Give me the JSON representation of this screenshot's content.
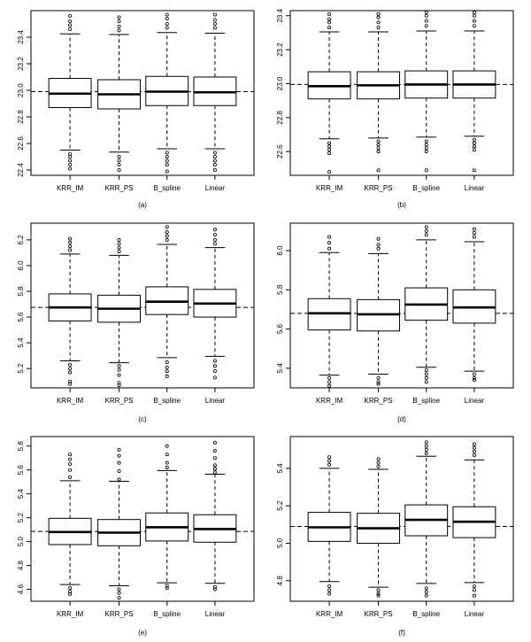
{
  "chart_data": [
    {
      "type": "box",
      "panel_label": "(a)",
      "categories": [
        "KRR_IM",
        "KRR_PS",
        "B_spline",
        "Linear"
      ],
      "ylim": [
        22.36,
        23.6
      ],
      "yticks": [
        "22.4",
        "22.6",
        "22.8",
        "23.0",
        "23.2",
        "23.4"
      ],
      "reference_line": 22.99,
      "boxes": [
        {
          "q1": 22.87,
          "median": 22.975,
          "q3": 23.09,
          "whisker_low": 22.55,
          "whisker_high": 23.425,
          "outliers": [
            22.52,
            22.5,
            22.47,
            22.44,
            22.41,
            23.46,
            23.49,
            23.52,
            23.56
          ]
        },
        {
          "q1": 22.86,
          "median": 22.97,
          "q3": 23.08,
          "whisker_low": 22.535,
          "whisker_high": 23.42,
          "outliers": [
            22.5,
            22.47,
            22.44,
            22.4,
            23.45,
            23.48,
            23.52,
            23.55
          ]
        },
        {
          "q1": 22.885,
          "median": 22.99,
          "q3": 23.105,
          "whisker_low": 22.56,
          "whisker_high": 23.435,
          "outliers": [
            22.53,
            22.5,
            22.47,
            22.44,
            22.39,
            23.47,
            23.5,
            23.54,
            23.57
          ]
        },
        {
          "q1": 22.885,
          "median": 22.985,
          "q3": 23.1,
          "whisker_low": 22.56,
          "whisker_high": 23.43,
          "outliers": [
            22.53,
            22.5,
            22.47,
            22.44,
            22.4,
            23.47,
            23.5,
            23.53,
            23.57
          ]
        }
      ]
    },
    {
      "type": "box",
      "panel_label": "(b)",
      "categories": [
        "KRR_IM",
        "KRR_PS",
        "B_spline",
        "Linear"
      ],
      "ylim": [
        22.46,
        23.43
      ],
      "yticks": [
        "22.6",
        "22.8",
        "23.0",
        "23.2",
        "23.4"
      ],
      "reference_line": 22.995,
      "boxes": [
        {
          "q1": 22.91,
          "median": 22.985,
          "q3": 23.07,
          "whisker_low": 22.675,
          "whisker_high": 23.305,
          "outliers": [
            22.65,
            22.63,
            22.61,
            22.59,
            22.48,
            23.33,
            23.36,
            23.38,
            23.41
          ]
        },
        {
          "q1": 22.91,
          "median": 22.99,
          "q3": 23.07,
          "whisker_low": 22.68,
          "whisker_high": 23.305,
          "outliers": [
            22.66,
            22.64,
            22.62,
            22.6,
            22.49,
            23.33,
            23.36,
            23.39,
            23.41
          ]
        },
        {
          "q1": 22.915,
          "median": 22.995,
          "q3": 23.075,
          "whisker_low": 22.685,
          "whisker_high": 23.31,
          "outliers": [
            22.66,
            22.64,
            22.62,
            22.6,
            22.49,
            23.34,
            23.37,
            23.4,
            23.42
          ]
        },
        {
          "q1": 22.915,
          "median": 22.995,
          "q3": 23.075,
          "whisker_low": 22.69,
          "whisker_high": 23.31,
          "outliers": [
            22.67,
            22.65,
            22.63,
            22.61,
            22.49,
            23.34,
            23.37,
            23.4,
            23.42
          ]
        }
      ]
    },
    {
      "type": "box",
      "panel_label": "(c)",
      "categories": [
        "KRR_IM",
        "KRR_PS",
        "B_spline",
        "Linear"
      ],
      "ylim": [
        5.05,
        6.33
      ],
      "yticks": [
        "5.2",
        "5.4",
        "5.6",
        "5.8",
        "6.0",
        "6.2"
      ],
      "reference_line": 5.675,
      "boxes": [
        {
          "q1": 5.57,
          "median": 5.675,
          "q3": 5.78,
          "whisker_low": 5.26,
          "whisker_high": 6.09,
          "outliers": [
            5.23,
            5.2,
            5.17,
            5.1,
            5.08,
            6.12,
            6.15,
            6.18,
            6.21
          ]
        },
        {
          "q1": 5.56,
          "median": 5.665,
          "q3": 5.77,
          "whisker_low": 5.245,
          "whisker_high": 6.08,
          "outliers": [
            5.22,
            5.19,
            5.15,
            5.09,
            5.07,
            6.11,
            6.14,
            6.17,
            6.2
          ]
        },
        {
          "q1": 5.62,
          "median": 5.72,
          "q3": 5.835,
          "whisker_low": 5.285,
          "whisker_high": 6.165,
          "outliers": [
            5.25,
            5.21,
            5.18,
            5.14,
            6.2,
            6.23,
            6.26,
            6.3
          ]
        },
        {
          "q1": 5.6,
          "median": 5.705,
          "q3": 5.815,
          "whisker_low": 5.295,
          "whisker_high": 6.14,
          "outliers": [
            5.26,
            5.22,
            5.18,
            5.13,
            6.17,
            6.2,
            6.24,
            6.28
          ]
        }
      ]
    },
    {
      "type": "box",
      "panel_label": "(d)",
      "categories": [
        "KRR_IM",
        "KRR_PS",
        "B_spline",
        "Linear"
      ],
      "ylim": [
        5.3,
        6.14
      ],
      "yticks": [
        "5.4",
        "5.6",
        "5.8",
        "6.0"
      ],
      "reference_line": 5.68,
      "boxes": [
        {
          "q1": 5.595,
          "median": 5.68,
          "q3": 5.755,
          "whisker_low": 5.365,
          "whisker_high": 5.99,
          "outliers": [
            5.35,
            5.33,
            5.31,
            6.01,
            6.04,
            6.07
          ]
        },
        {
          "q1": 5.59,
          "median": 5.675,
          "q3": 5.75,
          "whisker_low": 5.37,
          "whisker_high": 5.985,
          "outliers": [
            5.35,
            5.33,
            5.32,
            6.01,
            6.03,
            6.06
          ]
        },
        {
          "q1": 5.645,
          "median": 5.725,
          "q3": 5.81,
          "whisker_low": 5.405,
          "whisker_high": 6.055,
          "outliers": [
            5.39,
            5.37,
            5.35,
            5.33,
            6.08,
            6.1,
            6.12
          ]
        },
        {
          "q1": 5.63,
          "median": 5.71,
          "q3": 5.8,
          "whisker_low": 5.385,
          "whisker_high": 6.045,
          "outliers": [
            5.37,
            5.35,
            5.34,
            6.07,
            6.09,
            6.11
          ]
        }
      ]
    },
    {
      "type": "box",
      "panel_label": "(e)",
      "categories": [
        "KRR_IM",
        "KRR_PS",
        "B_spline",
        "Linear"
      ],
      "ylim": [
        4.5,
        5.88
      ],
      "yticks": [
        "4.6",
        "4.8",
        "5.0",
        "5.2",
        "5.4",
        "5.6",
        "5.8"
      ],
      "reference_line": 5.085,
      "boxes": [
        {
          "q1": 4.975,
          "median": 5.08,
          "q3": 5.195,
          "whisker_low": 4.64,
          "whisker_high": 5.51,
          "outliers": [
            4.61,
            4.58,
            4.56,
            5.54,
            5.6,
            5.65,
            5.69,
            5.73
          ]
        },
        {
          "q1": 4.965,
          "median": 5.075,
          "q3": 5.185,
          "whisker_low": 4.63,
          "whisker_high": 5.505,
          "outliers": [
            4.6,
            4.57,
            4.53,
            5.52,
            5.59,
            5.66,
            5.72,
            5.77
          ]
        },
        {
          "q1": 5.005,
          "median": 5.12,
          "q3": 5.24,
          "whisker_low": 4.655,
          "whisker_high": 5.595,
          "outliers": [
            4.63,
            4.61,
            5.62,
            5.66,
            5.73,
            5.8
          ]
        },
        {
          "q1": 4.995,
          "median": 5.105,
          "q3": 5.225,
          "whisker_low": 4.65,
          "whisker_high": 5.565,
          "outliers": [
            4.62,
            4.6,
            5.58,
            5.61,
            5.64,
            5.7,
            5.76,
            5.83
          ]
        }
      ]
    },
    {
      "type": "box",
      "panel_label": "(f)",
      "categories": [
        "KRR_IM",
        "KRR_PS",
        "B_spline",
        "Linear"
      ],
      "ylim": [
        4.69,
        5.57
      ],
      "yticks": [
        "4.8",
        "5.0",
        "5.2",
        "5.4"
      ],
      "reference_line": 5.09,
      "boxes": [
        {
          "q1": 5.01,
          "median": 5.085,
          "q3": 5.165,
          "whisker_low": 4.795,
          "whisker_high": 5.4,
          "outliers": [
            4.77,
            4.75,
            4.73,
            5.42,
            5.44,
            5.46
          ]
        },
        {
          "q1": 5.0,
          "median": 5.08,
          "q3": 5.16,
          "whisker_low": 4.765,
          "whisker_high": 5.395,
          "outliers": [
            4.75,
            4.73,
            4.72,
            5.41,
            5.43,
            5.45
          ]
        },
        {
          "q1": 5.04,
          "median": 5.125,
          "q3": 5.205,
          "whisker_low": 4.785,
          "whisker_high": 5.465,
          "outliers": [
            4.76,
            4.74,
            4.72,
            5.48,
            5.5,
            5.52,
            5.54
          ]
        },
        {
          "q1": 5.03,
          "median": 5.115,
          "q3": 5.195,
          "whisker_low": 4.79,
          "whisker_high": 5.445,
          "outliers": [
            4.77,
            4.75,
            4.72,
            5.47,
            5.49,
            5.51,
            5.53
          ]
        }
      ]
    }
  ]
}
